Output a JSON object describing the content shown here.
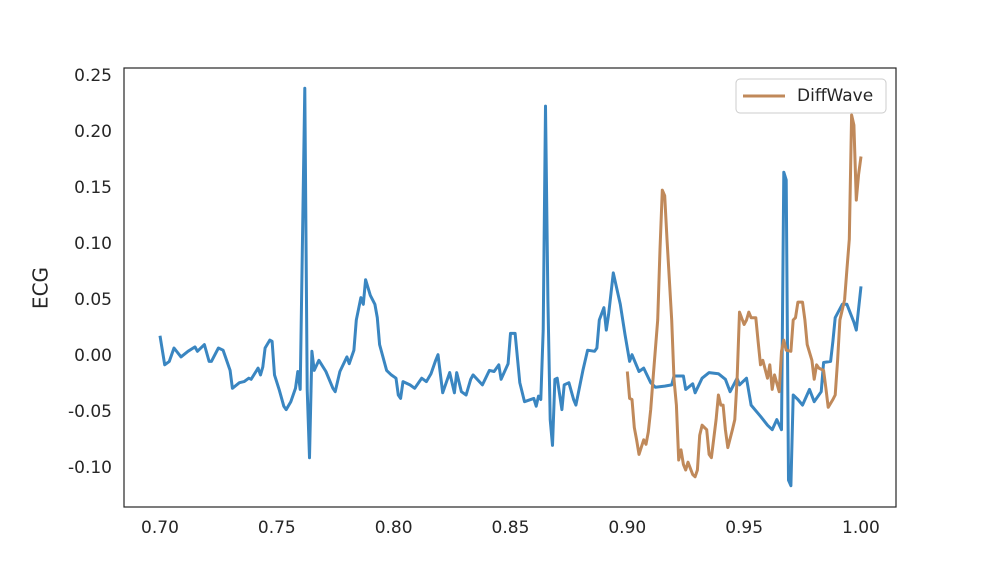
{
  "chart_data": {
    "type": "line",
    "ylabel": "ECG",
    "xlim": [
      0.6846,
      1.015
    ],
    "ylim": [
      -0.135,
      0.257
    ],
    "xticks": [
      {
        "value": 0.7,
        "label": "0.70"
      },
      0.75,
      {
        "value": 0.8,
        "label": "0.80"
      },
      0.85,
      {
        "value": 0.9,
        "label": "0.90"
      },
      0.95,
      {
        "value": 1.0,
        "label": "1.00"
      }
    ],
    "yticks": [
      {
        "value": -0.1,
        "label": "-0.10"
      },
      -0.05,
      {
        "value": 0,
        "label": "0.00"
      },
      0.05,
      {
        "value": 0.1,
        "label": "0.10"
      },
      0.15,
      {
        "value": 0.2,
        "label": "0.20"
      },
      0.25
    ],
    "grid": false,
    "legend": "upper right",
    "series": [
      {
        "color": "#3a86c1",
        "x": [
          0.7,
          0.702,
          0.704,
          0.706,
          0.709,
          0.712,
          0.715,
          0.716,
          0.719,
          0.721,
          0.722,
          0.725,
          0.727,
          0.73,
          0.731,
          0.734,
          0.736,
          0.738,
          0.739,
          0.742,
          0.743,
          0.744,
          0.745,
          0.747,
          0.748,
          0.749,
          0.751,
          0.753,
          0.754,
          0.756,
          0.758,
          0.759,
          0.76,
          0.762,
          0.763,
          0.764,
          0.765,
          0.766,
          0.768,
          0.771,
          0.774,
          0.775,
          0.777,
          0.78,
          0.781,
          0.783,
          0.784,
          0.786,
          0.787,
          0.788,
          0.79,
          0.792,
          0.793,
          0.794,
          0.797,
          0.799,
          0.801,
          0.802,
          0.803,
          0.804,
          0.807,
          0.809,
          0.812,
          0.814,
          0.816,
          0.818,
          0.819,
          0.821,
          0.824,
          0.826,
          0.827,
          0.829,
          0.831,
          0.833,
          0.834,
          0.838,
          0.841,
          0.843,
          0.845,
          0.846,
          0.849,
          0.85,
          0.852,
          0.854,
          0.856,
          0.86,
          0.861,
          0.862,
          0.863,
          0.864,
          0.865,
          0.866,
          0.867,
          0.868,
          0.869,
          0.87,
          0.872,
          0.873,
          0.875,
          0.877,
          0.878,
          0.881,
          0.883,
          0.886,
          0.887,
          0.888,
          0.89,
          0.891,
          0.892,
          0.894,
          0.897,
          0.899,
          0.901,
          0.902,
          0.905,
          0.907,
          0.91,
          0.912,
          0.916,
          0.919,
          0.92,
          0.924,
          0.925,
          0.928,
          0.929,
          0.932,
          0.935,
          0.939,
          0.942,
          0.944,
          0.947,
          0.948,
          0.951,
          0.953,
          0.957,
          0.96,
          0.962,
          0.964,
          0.966,
          0.967,
          0.968,
          0.969,
          0.97,
          0.971,
          0.973,
          0.975,
          0.978,
          0.98,
          0.983,
          0.984,
          0.987,
          0.988,
          0.989,
          0.992,
          0.994,
          0.997,
          0.998,
          1.0
        ],
        "values": [
          0.018,
          -0.008,
          -0.005,
          0.007,
          -0.001,
          0.004,
          0.008,
          0.004,
          0.01,
          -0.005,
          -0.005,
          0.007,
          0.005,
          -0.013,
          -0.029,
          -0.024,
          -0.023,
          -0.02,
          -0.021,
          -0.011,
          -0.017,
          -0.01,
          0.007,
          0.014,
          0.013,
          -0.017,
          -0.03,
          -0.045,
          -0.048,
          -0.041,
          -0.029,
          -0.014,
          -0.03,
          0.239,
          -0.03,
          -0.091,
          0.004,
          -0.013,
          -0.004,
          -0.014,
          -0.029,
          -0.032,
          -0.014,
          -0.001,
          -0.007,
          0.005,
          0.032,
          0.052,
          0.046,
          0.068,
          0.054,
          0.046,
          0.034,
          0.01,
          -0.013,
          -0.017,
          -0.02,
          -0.035,
          -0.038,
          -0.023,
          -0.026,
          -0.029,
          -0.02,
          -0.023,
          -0.016,
          -0.004,
          0.001,
          -0.033,
          -0.015,
          -0.033,
          -0.015,
          -0.032,
          -0.035,
          -0.021,
          -0.017,
          -0.026,
          -0.013,
          -0.014,
          -0.008,
          -0.021,
          -0.007,
          0.02,
          0.02,
          -0.024,
          -0.041,
          -0.038,
          -0.045,
          -0.036,
          -0.039,
          0.023,
          0.223,
          0.05,
          -0.057,
          -0.08,
          -0.021,
          -0.02,
          -0.048,
          -0.026,
          -0.024,
          -0.039,
          -0.044,
          -0.013,
          0.005,
          0.004,
          0.007,
          0.032,
          0.043,
          0.023,
          0.037,
          0.074,
          0.046,
          0.019,
          -0.005,
          0.001,
          -0.014,
          -0.011,
          -0.024,
          -0.028,
          -0.027,
          -0.026,
          -0.018,
          -0.018,
          -0.03,
          -0.025,
          -0.033,
          -0.02,
          -0.015,
          -0.016,
          -0.021,
          -0.032,
          -0.02,
          -0.026,
          -0.02,
          -0.044,
          -0.054,
          -0.062,
          -0.066,
          -0.057,
          -0.066,
          0.164,
          0.157,
          -0.111,
          -0.116,
          -0.035,
          -0.039,
          -0.044,
          -0.03,
          -0.041,
          -0.032,
          -0.006,
          -0.005,
          0.013,
          0.034,
          0.046,
          0.046,
          0.03,
          0.023,
          0.062
        ]
      },
      {
        "name": "DiffWave",
        "color": "#c0895a",
        "x": [
          0.9,
          0.901,
          0.902,
          0.903,
          0.904,
          0.905,
          0.907,
          0.908,
          0.909,
          0.91,
          0.911,
          0.913,
          0.914,
          0.915,
          0.916,
          0.917,
          0.919,
          0.92,
          0.921,
          0.922,
          0.923,
          0.924,
          0.925,
          0.926,
          0.928,
          0.929,
          0.93,
          0.931,
          0.932,
          0.934,
          0.935,
          0.936,
          0.938,
          0.939,
          0.94,
          0.941,
          0.942,
          0.943,
          0.945,
          0.946,
          0.947,
          0.948,
          0.95,
          0.951,
          0.952,
          0.953,
          0.955,
          0.956,
          0.957,
          0.958,
          0.96,
          0.961,
          0.962,
          0.963,
          0.965,
          0.966,
          0.967,
          0.968,
          0.97,
          0.971,
          0.972,
          0.973,
          0.975,
          0.976,
          0.977,
          0.979,
          0.98,
          0.981,
          0.982,
          0.984,
          0.985,
          0.986,
          0.988,
          0.989,
          0.99,
          0.991,
          0.993,
          0.994,
          0.995,
          0.996,
          0.997,
          0.998,
          0.999,
          1.0
        ],
        "values": [
          -0.014,
          -0.038,
          -0.039,
          -0.064,
          -0.075,
          -0.088,
          -0.075,
          -0.079,
          -0.068,
          -0.048,
          -0.021,
          0.032,
          0.095,
          0.148,
          0.143,
          0.104,
          0.032,
          -0.021,
          -0.044,
          -0.093,
          -0.084,
          -0.097,
          -0.102,
          -0.095,
          -0.106,
          -0.108,
          -0.102,
          -0.071,
          -0.062,
          -0.066,
          -0.088,
          -0.091,
          -0.057,
          -0.035,
          -0.044,
          -0.044,
          -0.066,
          -0.082,
          -0.066,
          -0.057,
          -0.021,
          0.039,
          0.028,
          0.032,
          0.039,
          0.034,
          0.034,
          0.013,
          -0.008,
          -0.004,
          -0.02,
          -0.008,
          -0.03,
          -0.017,
          -0.032,
          0.004,
          0.014,
          0.005,
          0.004,
          0.032,
          0.034,
          0.048,
          0.048,
          0.032,
          0.01,
          -0.004,
          -0.021,
          -0.008,
          -0.011,
          -0.013,
          -0.029,
          -0.046,
          -0.039,
          -0.035,
          -0.004,
          0.032,
          0.05,
          0.077,
          0.104,
          0.215,
          0.206,
          0.139,
          0.162,
          0.178
        ]
      }
    ]
  }
}
